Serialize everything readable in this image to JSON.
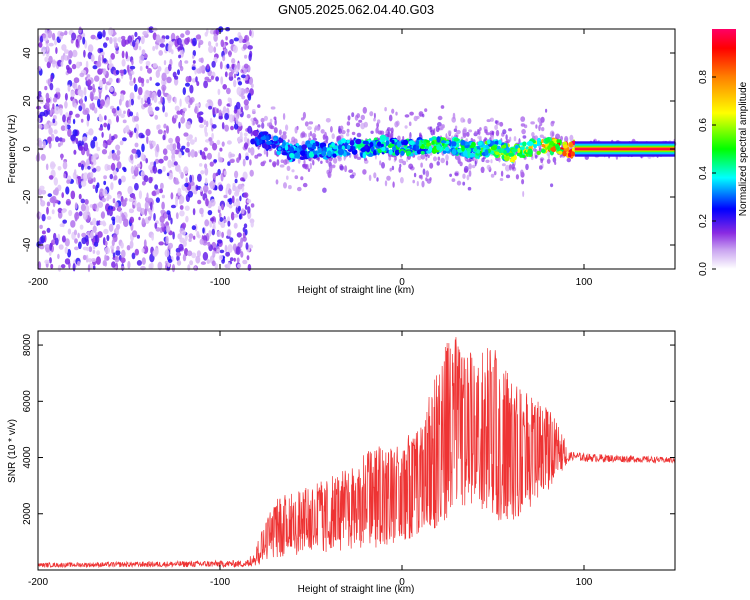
{
  "title": "GN05.2025.062.04.40.G03",
  "chart_data": [
    {
      "type": "heatmap",
      "name": "spectrogram",
      "xlabel": "Height of straight line (km)",
      "ylabel": "Frequency (Hz)",
      "xlim": [
        -200,
        150
      ],
      "ylim": [
        -50,
        50
      ],
      "xticks": [
        -200,
        -100,
        0,
        100
      ],
      "xtick_labels": [
        "-200",
        "-100",
        "0",
        "100"
      ],
      "yticks": [
        -40,
        -20,
        0,
        20,
        40
      ],
      "ytick_labels": [
        "-40",
        "-20",
        "0",
        "20",
        "40"
      ],
      "colorbar": {
        "label": "Normalized spectral amplitude",
        "range": [
          0,
          1
        ],
        "ticks": [
          0.0,
          0.2,
          0.4,
          0.6,
          0.8
        ],
        "tick_labels": [
          "0.0",
          "0.2",
          "0.4",
          "0.6",
          "0.8"
        ],
        "colors": [
          "#ffffff",
          "#8a2be2",
          "#0000ff",
          "#00ffff",
          "#00ff00",
          "#ffff00",
          "#ff8000",
          "#ff0000",
          "#ff0066"
        ]
      },
      "noise_region_x": [
        -200,
        -82
      ],
      "signal_trace": {
        "x": [
          -82,
          -70,
          -60,
          -50,
          -40,
          -30,
          -20,
          -10,
          0,
          10,
          20,
          30,
          40,
          50,
          60,
          70,
          80,
          90,
          100,
          150
        ],
        "center_freq": [
          6,
          2,
          -2,
          0,
          -1,
          1,
          0,
          2,
          0,
          1,
          2,
          1,
          -1,
          1,
          -2,
          0,
          1,
          0,
          0,
          0
        ],
        "amplitude": [
          0.25,
          0.3,
          0.35,
          0.35,
          0.38,
          0.35,
          0.4,
          0.42,
          0.45,
          0.45,
          0.5,
          0.45,
          0.45,
          0.5,
          0.55,
          0.6,
          0.7,
          0.85,
          0.95,
          0.95
        ]
      }
    },
    {
      "type": "line",
      "name": "snr",
      "xlabel": "Height of straight line (km)",
      "ylabel": "SNR (10 * v/v)",
      "xlim": [
        -200,
        150
      ],
      "ylim": [
        0,
        8500
      ],
      "xticks": [
        -200,
        -100,
        0,
        100
      ],
      "xtick_labels": [
        "-200",
        "-100",
        "0",
        "100"
      ],
      "yticks": [
        2000,
        4000,
        6000,
        8000
      ],
      "ytick_labels": [
        "2000",
        "4000",
        "6000",
        "8000"
      ],
      "color": "#ee3333",
      "envelope": {
        "x": [
          -200,
          -85,
          -80,
          -75,
          -70,
          -60,
          -50,
          -40,
          -30,
          -20,
          -10,
          -5,
          0,
          10,
          20,
          25,
          30,
          40,
          50,
          60,
          70,
          80,
          90,
          92,
          95,
          100,
          150
        ],
        "low": [
          100,
          100,
          150,
          300,
          400,
          500,
          600,
          600,
          700,
          800,
          800,
          900,
          1000,
          1200,
          1500,
          1800,
          2000,
          2200,
          1800,
          1700,
          2200,
          2800,
          3700,
          3900,
          3900,
          3850,
          3800
        ],
        "high": [
          250,
          350,
          900,
          1800,
          2500,
          2800,
          3000,
          3300,
          3600,
          4200,
          4700,
          4400,
          4600,
          5200,
          7200,
          8200,
          8300,
          7600,
          8100,
          6800,
          6200,
          5800,
          4700,
          4200,
          4200,
          4150,
          4000
        ]
      }
    }
  ]
}
